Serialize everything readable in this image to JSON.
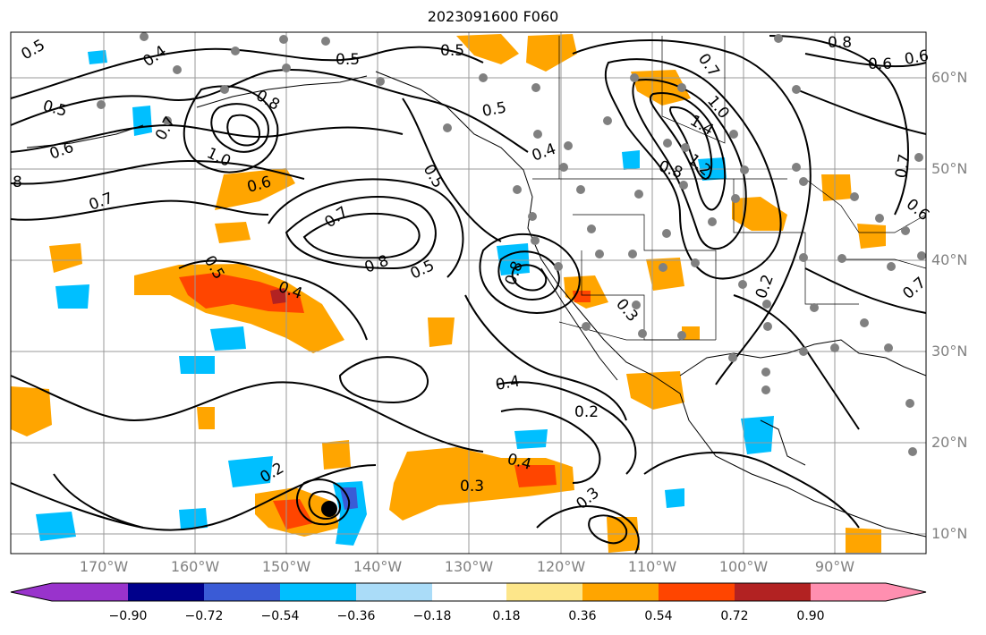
{
  "title": "2023091600 F060",
  "lat_labels": [
    "60°N",
    "50°N",
    "40°N",
    "30°N",
    "20°N",
    "10°N"
  ],
  "lon_labels": [
    "170°W",
    "160°W",
    "150°W",
    "140°W",
    "130°W",
    "120°W",
    "110°W",
    "100°W",
    "90°W"
  ],
  "contour_labels": [
    "0.5",
    "0.4",
    "0.5",
    "0.5",
    "0.8",
    "0.6",
    "0.5",
    "0.8",
    "0.7",
    "0.7",
    "1.4",
    "1.2",
    "1.0",
    "0.7",
    "0.5",
    "0.6",
    "0.6",
    "1.0",
    "0.8",
    "0.4",
    "0.7",
    "0.5",
    "8",
    "0.6",
    "0.7",
    "0.8",
    "0.5",
    "0.5",
    "0.4",
    "0.8",
    "0.3",
    "0.2",
    "0.4",
    "0.2",
    "0.4",
    "0.3",
    "0.2",
    "0.3",
    "0.6",
    "0.7"
  ],
  "colorbar": {
    "tick_labels": [
      "−0.90",
      "−0.72",
      "−0.54",
      "−0.36",
      "−0.18",
      "0.18",
      "0.36",
      "0.54",
      "0.72",
      "0.90"
    ],
    "colors": [
      "#9933cc",
      "#00008b",
      "#3a5bd6",
      "#00bfff",
      "#aadcf8",
      "#ffffff",
      "#fde68a",
      "#ffa500",
      "#ff4500",
      "#b22222",
      "#ff8fb0"
    ]
  },
  "colors": {
    "positive_1": "#ffa500",
    "positive_2": "#ff4500",
    "positive_3": "#b22222",
    "negative_1": "#00bfff",
    "negative_2": "#3a5bd6",
    "contour": "#000000",
    "station": "#808080",
    "grid": "#999999"
  }
}
